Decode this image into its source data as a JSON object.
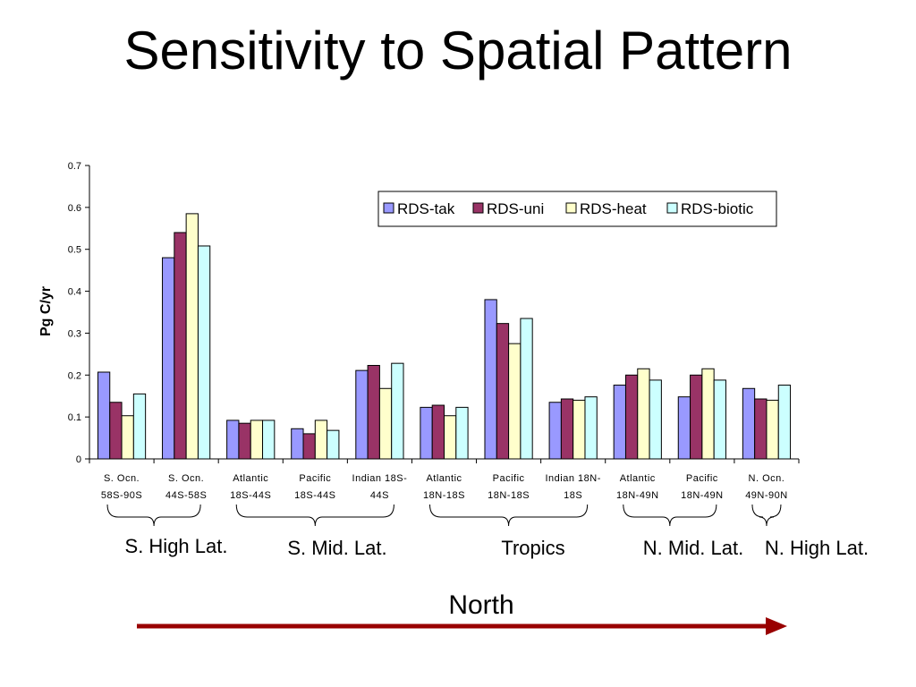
{
  "slide": {
    "title": "Sensitivity to Spatial Pattern"
  },
  "chart_data": {
    "type": "bar",
    "ylabel": "Pg C/yr",
    "ylim": [
      0,
      0.7
    ],
    "yticks": [
      "0",
      "0.1",
      "0.2",
      "0.3",
      "0.4",
      "0.5",
      "0.6",
      "0.7"
    ],
    "legend_position": "top-right",
    "categories": [
      [
        "S. Ocn.",
        "58S-90S"
      ],
      [
        "S. Ocn.",
        "44S-58S"
      ],
      [
        "Atlantic",
        "18S-44S"
      ],
      [
        "Pacific",
        "18S-44S"
      ],
      [
        "Indian 18S-",
        "44S"
      ],
      [
        "Atlantic",
        "18N-18S"
      ],
      [
        "Pacific",
        "18N-18S"
      ],
      [
        "Indian 18N-",
        "18S"
      ],
      [
        "Atlantic",
        "18N-49N"
      ],
      [
        "Pacific",
        "18N-49N"
      ],
      [
        "N. Ocn.",
        "49N-90N"
      ]
    ],
    "series": [
      {
        "name": "RDS-tak",
        "color": "#9999ff",
        "values": [
          0.207,
          0.48,
          0.092,
          0.072,
          0.211,
          0.123,
          0.38,
          0.135,
          0.176,
          0.148,
          0.168
        ]
      },
      {
        "name": "RDS-uni",
        "color": "#993366",
        "values": [
          0.135,
          0.54,
          0.085,
          0.06,
          0.223,
          0.128,
          0.323,
          0.143,
          0.2,
          0.2,
          0.143
        ]
      },
      {
        "name": "RDS-heat",
        "color": "#ffffcc",
        "values": [
          0.103,
          0.585,
          0.092,
          0.092,
          0.168,
          0.103,
          0.275,
          0.14,
          0.215,
          0.215,
          0.14
        ]
      },
      {
        "name": "RDS-biotic",
        "color": "#ccffff",
        "values": [
          0.155,
          0.508,
          0.092,
          0.068,
          0.228,
          0.123,
          0.335,
          0.148,
          0.188,
          0.188,
          0.176
        ]
      }
    ]
  },
  "groups": [
    {
      "label": "S. High Lat.",
      "span": [
        0,
        1
      ]
    },
    {
      "label": "S. Mid. Lat.",
      "span": [
        2,
        4
      ]
    },
    {
      "label": "Tropics",
      "span": [
        5,
        7
      ]
    },
    {
      "label": "N. Mid. Lat.",
      "span": [
        8,
        9
      ]
    },
    {
      "label": "N. High Lat.",
      "span": [
        10,
        10
      ]
    }
  ],
  "direction": {
    "label": "North",
    "arrow_color": "#990000"
  }
}
